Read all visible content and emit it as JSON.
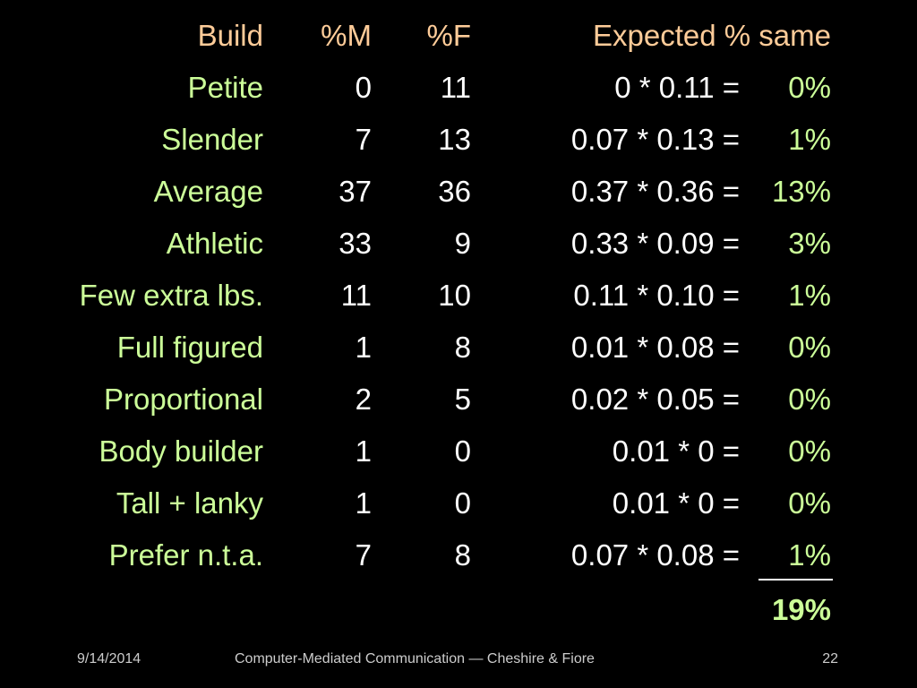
{
  "header": {
    "build": "Build",
    "m": "%M",
    "f": "%F",
    "expected": "Expected % same"
  },
  "rows": [
    {
      "build": "Petite",
      "m": "0",
      "f": "11",
      "expr": "0 * 0.11 =",
      "pct": "0%"
    },
    {
      "build": "Slender",
      "m": "7",
      "f": "13",
      "expr": "0.07 * 0.13 =",
      "pct": "1%"
    },
    {
      "build": "Average",
      "m": "37",
      "f": "36",
      "expr": "0.37 * 0.36 =",
      "pct": "13%"
    },
    {
      "build": "Athletic",
      "m": "33",
      "f": "9",
      "expr": "0.33 * 0.09 =",
      "pct": "3%"
    },
    {
      "build": "Few extra lbs.",
      "m": "11",
      "f": "10",
      "expr": "0.11 * 0.10 =",
      "pct": "1%"
    },
    {
      "build": "Full figured",
      "m": "1",
      "f": "8",
      "expr": "0.01 * 0.08 =",
      "pct": "0%"
    },
    {
      "build": "Proportional",
      "m": "2",
      "f": "5",
      "expr": "0.02 * 0.05 =",
      "pct": "0%"
    },
    {
      "build": "Body builder",
      "m": "1",
      "f": "0",
      "expr": "0.01 * 0 =",
      "pct": "0%"
    },
    {
      "build": "Tall + lanky",
      "m": "1",
      "f": "0",
      "expr": "0.01 * 0 =",
      "pct": "0%"
    },
    {
      "build": "Prefer n.t.a.",
      "m": "7",
      "f": "8",
      "expr": "0.07 * 0.08 =",
      "pct": "1%"
    }
  ],
  "total": "19%",
  "footer": {
    "date": "9/14/2014",
    "title": "Computer-Mediated Communication — Cheshire & Fiore",
    "page": "22"
  },
  "colors": {
    "background": "#000000",
    "header": "#ffcc99",
    "label": "#ccff99",
    "value": "#ffffff",
    "footer": "#cccccc"
  }
}
